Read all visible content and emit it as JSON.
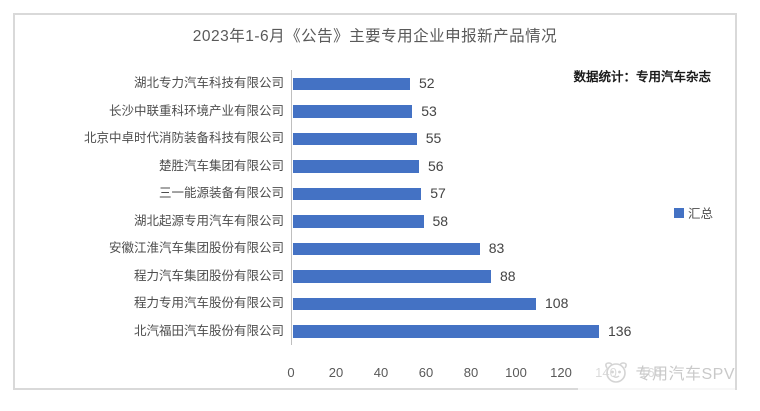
{
  "chart": {
    "title": "2023年1-6月《公告》主要专用企业申报新产品情况",
    "annotation": "数据统计：专用汽车杂志",
    "legend": {
      "label": "汇总",
      "marker_color": "#4472C4"
    },
    "watermark_text": "专用汽车SPV",
    "bar_color": "#4472C4",
    "border_color": "#d9d9d9"
  },
  "chart_data": {
    "type": "bar",
    "orientation": "horizontal",
    "title": "2023年1-6月《公告》主要专用企业申报新产品情况",
    "series_name": "汇总",
    "categories": [
      "湖北专力汽车科技有限公司",
      "长沙中联重科环境产业有限公司",
      "北京中卓时代消防装备科技有限公司",
      "楚胜汽车集团有限公司",
      "三一能源装备有限公司",
      "湖北起源专用汽车有限公司",
      "安徽江淮汽车集团股份有限公司",
      "程力汽车集团股份有限公司",
      "程力专用汽车股份有限公司",
      "北汽福田汽车股份有限公司"
    ],
    "values": [
      52,
      53,
      55,
      56,
      57,
      58,
      83,
      88,
      108,
      136
    ],
    "data_labels_visible": true,
    "xlabel": "",
    "ylabel": "",
    "xlim": [
      0,
      160
    ],
    "x_ticks": [
      0,
      20,
      40,
      60,
      80,
      100,
      120,
      140,
      160
    ],
    "grid": false,
    "legend_position": "right",
    "annotation": "数据统计：专用汽车杂志"
  }
}
